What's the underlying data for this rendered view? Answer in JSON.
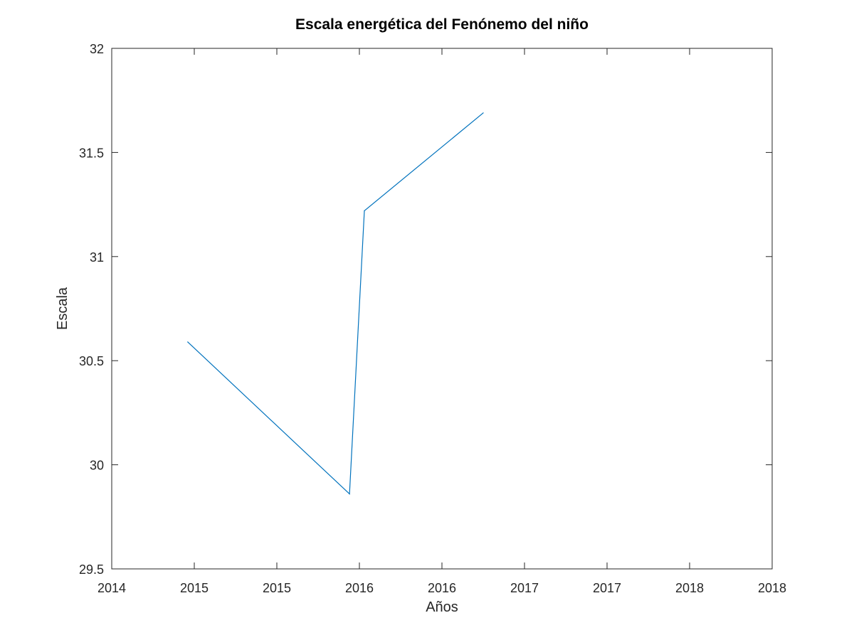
{
  "chart_data": {
    "type": "line",
    "title": "Escala energética del Fenónemo del niño",
    "xlabel": "Años",
    "ylabel": "Escala",
    "xlim": [
      2014.0,
      2018.0
    ],
    "ylim": [
      29.5,
      32.0
    ],
    "x_ticks": [
      2014.0,
      2014.5,
      2015.0,
      2015.5,
      2016.0,
      2016.5,
      2017.0,
      2017.5,
      2018.0
    ],
    "x_tick_labels": [
      "2014",
      "2015",
      "2015",
      "2016",
      "2016",
      "2017",
      "2017",
      "2018",
      "2018"
    ],
    "y_ticks": [
      29.5,
      30.0,
      30.5,
      31.0,
      31.5,
      32.0
    ],
    "y_tick_labels": [
      "29.5",
      "30",
      "30.5",
      "31",
      "31.5",
      "32"
    ],
    "grid": false,
    "legend": "none",
    "series": [
      {
        "color": "#0072bd",
        "x": [
          2014.46,
          2015.44,
          2015.53,
          2016.25
        ],
        "y": [
          30.59,
          29.86,
          31.22,
          31.69
        ]
      }
    ]
  }
}
